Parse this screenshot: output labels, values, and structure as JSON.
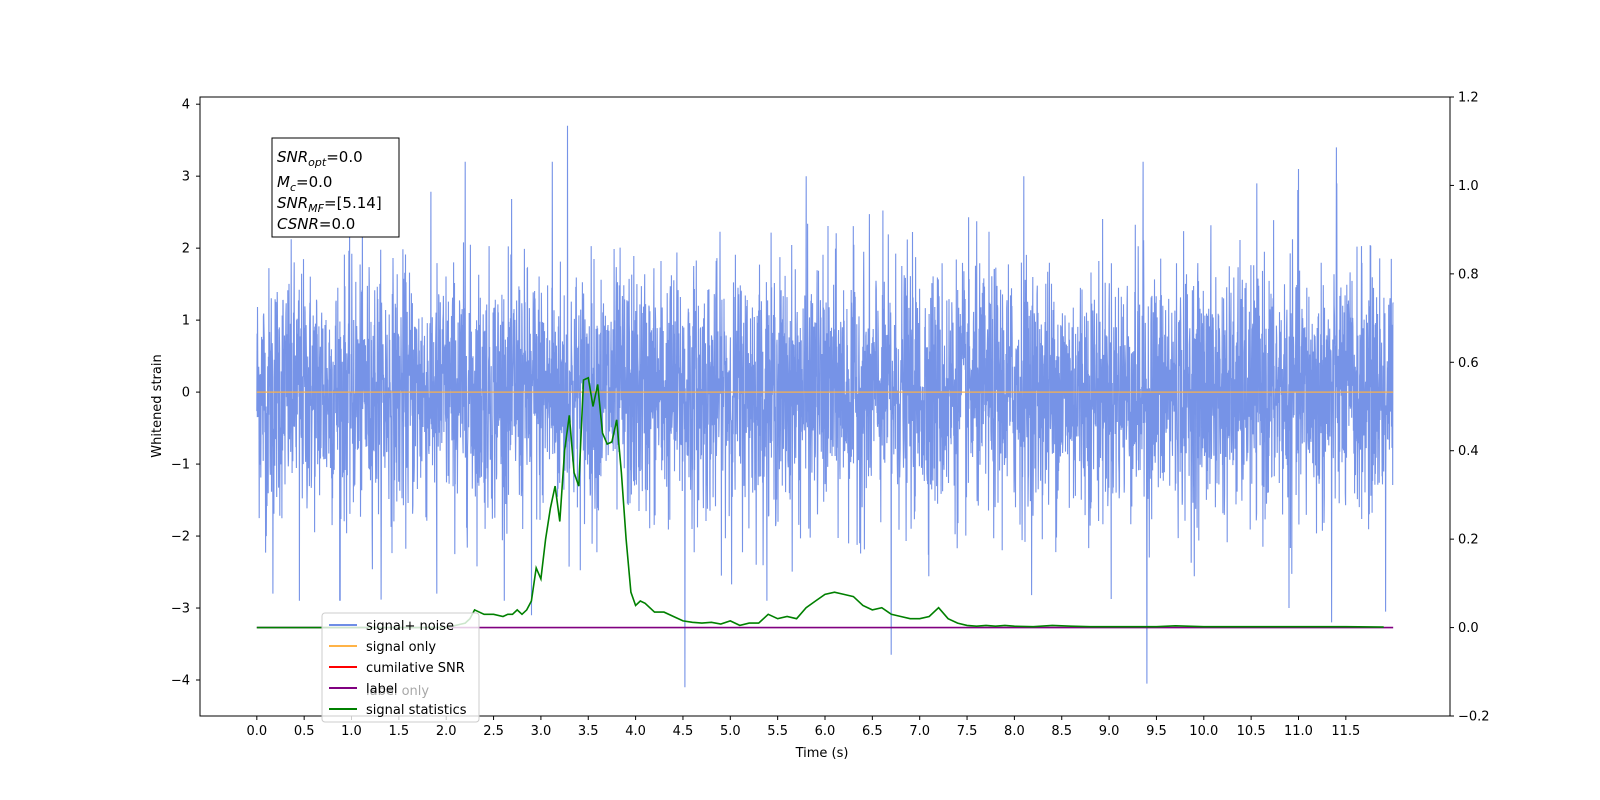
{
  "chart_data": {
    "type": "line",
    "xlabel": "Time (s)",
    "ylabel": "Whitened strain",
    "xlim": [
      -0.6,
      12.6
    ],
    "ylim_left": [
      -4.5,
      4.1
    ],
    "ylim_right": [
      -0.2,
      1.2
    ],
    "x_ticks": [
      "0.0",
      "0.5",
      "1.0",
      "1.5",
      "2.0",
      "2.5",
      "3.0",
      "3.5",
      "4.0",
      "4.5",
      "5.0",
      "5.5",
      "6.0",
      "6.5",
      "7.0",
      "7.5",
      "8.0",
      "8.5",
      "9.0",
      "9.5",
      "10.0",
      "10.5",
      "11.0",
      "11.5"
    ],
    "y_ticks_left": [
      "4",
      "3",
      "2",
      "1",
      "0",
      "−1",
      "−2",
      "−3",
      "−4"
    ],
    "y_ticks_right": [
      "1.2",
      "1.0",
      "0.8",
      "0.6",
      "0.4",
      "0.2",
      "0.0",
      "−0.2"
    ],
    "annotation": {
      "snr_opt": "=0.0",
      "mc": "=0.0",
      "snr_mf": "=[5.14]",
      "csnr": "=0.0"
    },
    "legend": {
      "placement": "lower-left",
      "entries": [
        "signal+ noise",
        "signal only",
        "cumilative SNR",
        "label",
        "signal statistics"
      ],
      "hidden_entry": "label only"
    },
    "colors": {
      "noise": "#6f8de6",
      "signal": "#ffb347",
      "cum_snr": "#ff0000",
      "label": "#800080",
      "stat": "#008000"
    },
    "series": [
      {
        "name": "signal+ noise",
        "axis": "left",
        "x_range": [
          0.0,
          12.0
        ],
        "noise_std": 0.85,
        "spikes": [
          {
            "x": 0.1,
            "y": -2.0
          },
          {
            "x": 0.17,
            "y": -2.8
          },
          {
            "x": 0.45,
            "y": -2.9
          },
          {
            "x": 0.88,
            "y": -2.9
          },
          {
            "x": 1.9,
            "y": -2.8
          },
          {
            "x": 2.2,
            "y": 3.2
          },
          {
            "x": 2.9,
            "y": -3.1
          },
          {
            "x": 3.28,
            "y": 3.7
          },
          {
            "x": 3.12,
            "y": 3.2
          },
          {
            "x": 4.52,
            "y": -4.1
          },
          {
            "x": 5.8,
            "y": 3.0
          },
          {
            "x": 6.7,
            "y": -3.65
          },
          {
            "x": 9.4,
            "y": -4.05
          },
          {
            "x": 9.36,
            "y": 3.2
          },
          {
            "x": 11.4,
            "y": 3.4
          },
          {
            "x": 11.35,
            "y": -3.2
          },
          {
            "x": 11.92,
            "y": -3.05
          },
          {
            "x": 10.9,
            "y": -3.0
          },
          {
            "x": 11.0,
            "y": 3.1
          },
          {
            "x": 8.1,
            "y": 3.0
          }
        ]
      },
      {
        "name": "signal only",
        "axis": "left",
        "x": [
          0.0,
          12.0
        ],
        "y": [
          0.0,
          0.0
        ]
      },
      {
        "name": "label",
        "axis": "right",
        "x": [
          0.0,
          12.0
        ],
        "y": [
          0.0,
          0.0
        ]
      },
      {
        "name": "signal statistics",
        "axis": "right",
        "x": [
          0.0,
          1.0,
          1.5,
          2.0,
          2.1,
          2.2,
          2.25,
          2.3,
          2.4,
          2.5,
          2.6,
          2.65,
          2.7,
          2.75,
          2.8,
          2.85,
          2.9,
          2.95,
          3.0,
          3.05,
          3.1,
          3.15,
          3.2,
          3.25,
          3.3,
          3.35,
          3.4,
          3.45,
          3.5,
          3.55,
          3.6,
          3.65,
          3.7,
          3.75,
          3.8,
          3.85,
          3.9,
          3.95,
          4.0,
          4.05,
          4.1,
          4.2,
          4.3,
          4.4,
          4.5,
          4.6,
          4.7,
          4.8,
          4.9,
          5.0,
          5.1,
          5.2,
          5.3,
          5.4,
          5.5,
          5.6,
          5.7,
          5.8,
          5.9,
          6.0,
          6.1,
          6.2,
          6.3,
          6.4,
          6.5,
          6.6,
          6.7,
          6.8,
          6.9,
          7.0,
          7.1,
          7.2,
          7.3,
          7.4,
          7.5,
          7.6,
          7.7,
          7.8,
          7.9,
          8.0,
          8.2,
          8.4,
          8.6,
          8.8,
          9.0,
          9.5,
          9.7,
          10.0,
          10.5,
          11.0,
          11.5,
          11.9
        ],
        "y": [
          0.0,
          0.0,
          0.0,
          0.0,
          0.005,
          0.01,
          0.02,
          0.04,
          0.03,
          0.03,
          0.025,
          0.03,
          0.03,
          0.04,
          0.03,
          0.04,
          0.06,
          0.135,
          0.11,
          0.2,
          0.27,
          0.32,
          0.24,
          0.4,
          0.48,
          0.35,
          0.32,
          0.56,
          0.565,
          0.5,
          0.55,
          0.44,
          0.415,
          0.42,
          0.47,
          0.35,
          0.2,
          0.08,
          0.05,
          0.06,
          0.055,
          0.035,
          0.035,
          0.025,
          0.015,
          0.012,
          0.01,
          0.012,
          0.008,
          0.015,
          0.005,
          0.01,
          0.01,
          0.03,
          0.02,
          0.025,
          0.02,
          0.045,
          0.06,
          0.075,
          0.08,
          0.075,
          0.07,
          0.05,
          0.04,
          0.045,
          0.03,
          0.025,
          0.02,
          0.02,
          0.025,
          0.045,
          0.02,
          0.01,
          0.005,
          0.003,
          0.005,
          0.003,
          0.005,
          0.003,
          0.002,
          0.005,
          0.003,
          0.002,
          0.002,
          0.002,
          0.004,
          0.002,
          0.002,
          0.002,
          0.002,
          0.001
        ]
      }
    ]
  }
}
